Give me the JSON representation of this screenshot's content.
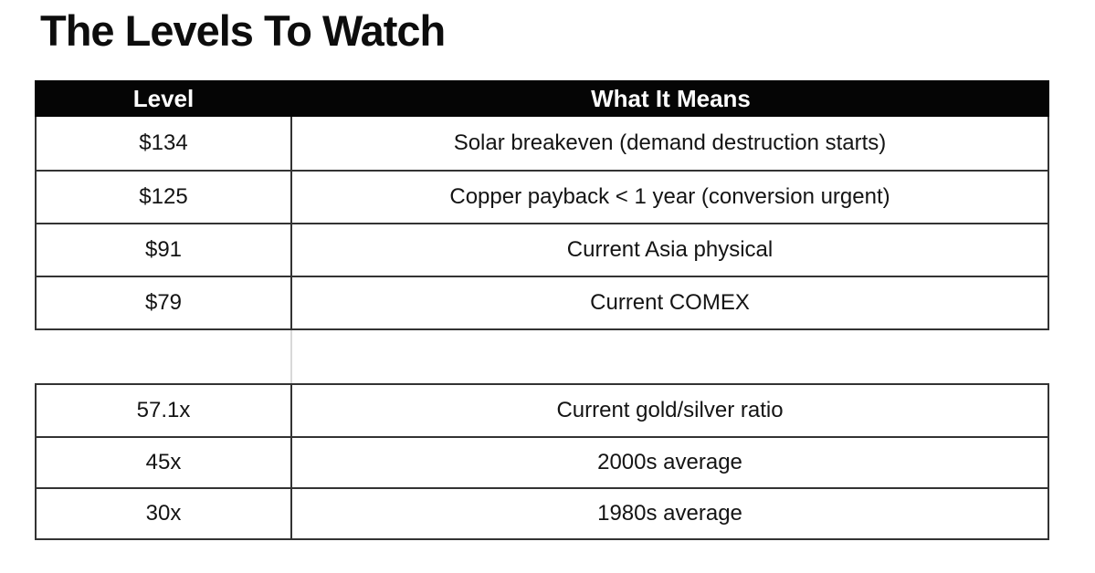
{
  "title": "The Levels To Watch",
  "table": {
    "header": {
      "level": "Level",
      "meaning": "What It Means"
    },
    "sections": [
      {
        "rows": [
          {
            "level": "$134",
            "meaning": "Solar breakeven (demand destruction starts)"
          },
          {
            "level": "$125",
            "meaning": "Copper payback < 1 year (conversion urgent)"
          },
          {
            "level": "$91",
            "meaning": "Current Asia physical"
          },
          {
            "level": "$79",
            "meaning": "Current COMEX"
          }
        ]
      },
      {
        "rows": [
          {
            "level": "57.1x",
            "meaning": "Current gold/silver ratio"
          },
          {
            "level": "45x",
            "meaning": "2000s average"
          },
          {
            "level": "30x",
            "meaning": "1980s average"
          }
        ]
      }
    ]
  },
  "colors": {
    "header_bg": "#050505",
    "header_text": "#ffffff",
    "border": "#333333",
    "faint_divider": "#d8d8d8",
    "text": "#141414",
    "background": "#ffffff"
  }
}
